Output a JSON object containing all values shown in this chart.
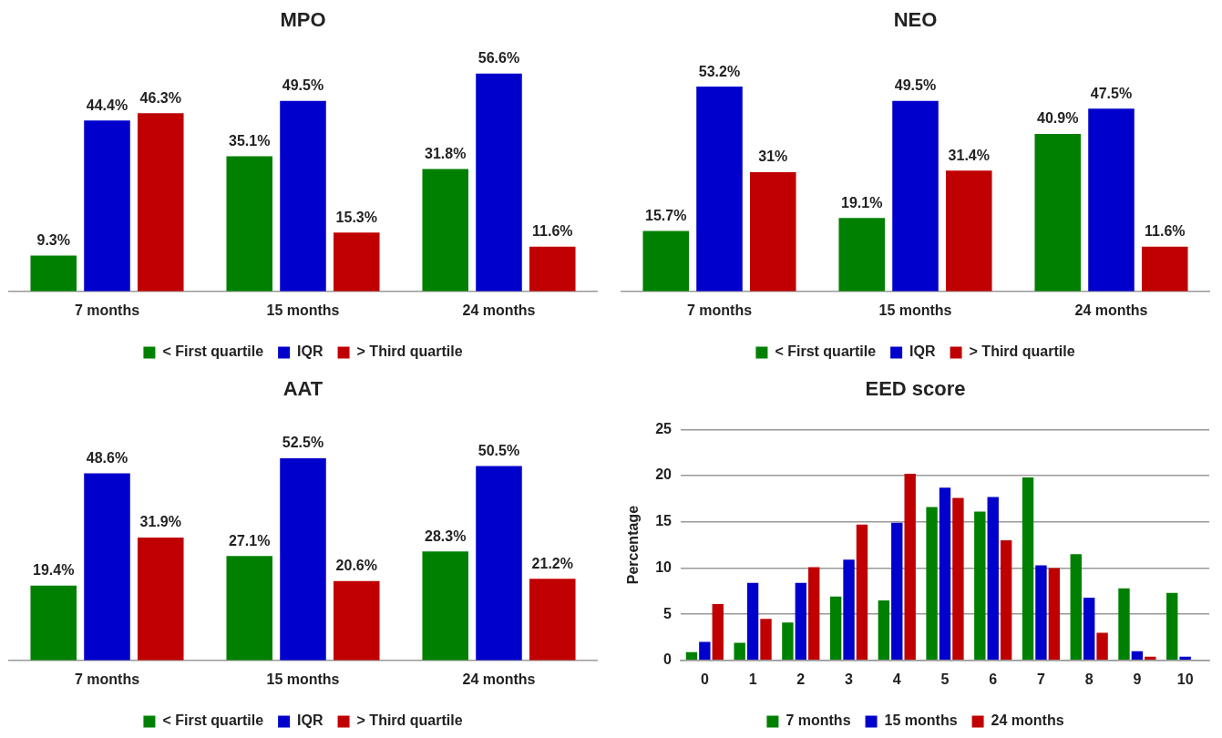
{
  "chart_data": [
    {
      "type": "bar",
      "title": "MPO",
      "categories": [
        "7 months",
        "15 months",
        "24 months"
      ],
      "tick_labels": "x",
      "legend": "bottom",
      "series": [
        {
          "name": "< First quartile",
          "color": "#008000",
          "values": [
            9.3,
            35.1,
            31.8
          ],
          "value_labels": [
            "9.3%",
            "35.1%",
            "31.8%"
          ]
        },
        {
          "name": "IQR",
          "color": "#0000cc",
          "values": [
            44.4,
            49.5,
            56.6
          ],
          "value_labels": [
            "44.4%",
            "49.5%",
            "56.6%"
          ]
        },
        {
          "name": "> Third quartile",
          "color": "#c00000",
          "values": [
            46.3,
            15.3,
            11.6
          ],
          "value_labels": [
            "46.3%",
            "15.3%",
            "11.6%"
          ]
        }
      ]
    },
    {
      "type": "bar",
      "title": "NEO",
      "categories": [
        "7 months",
        "15 months",
        "24 months"
      ],
      "tick_labels": "x",
      "legend": "bottom",
      "series": [
        {
          "name": "< First quartile",
          "color": "#008000",
          "values": [
            15.7,
            19.1,
            40.9
          ],
          "value_labels": [
            "15.7%",
            "19.1%",
            "40.9%"
          ]
        },
        {
          "name": "IQR",
          "color": "#0000cc",
          "values": [
            53.2,
            49.5,
            47.5
          ],
          "value_labels": [
            "53.2%",
            "49.5%",
            "47.5%"
          ]
        },
        {
          "name": "> Third quartile",
          "color": "#c00000",
          "values": [
            31,
            31.4,
            11.6
          ],
          "value_labels": [
            "31%",
            "31.4%",
            "11.6%"
          ]
        }
      ]
    },
    {
      "type": "bar",
      "title": "AAT",
      "categories": [
        "7 months",
        "15 months",
        "24 months"
      ],
      "tick_labels": "x",
      "legend": "bottom",
      "series": [
        {
          "name": "< First quartile",
          "color": "#008000",
          "values": [
            19.4,
            27.1,
            28.3
          ],
          "value_labels": [
            "19.4%",
            "27.1%",
            "28.3%"
          ]
        },
        {
          "name": "IQR",
          "color": "#0000cc",
          "values": [
            48.6,
            52.5,
            50.5
          ],
          "value_labels": [
            "48.6%",
            "52.5%",
            "50.5%"
          ]
        },
        {
          "name": "> Third quartile",
          "color": "#c00000",
          "values": [
            31.9,
            20.6,
            21.2
          ],
          "value_labels": [
            "31.9%",
            "20.6%",
            "21.2%"
          ]
        }
      ]
    },
    {
      "type": "bar",
      "title": "EED score",
      "ylabel": "Percentage",
      "categories": [
        "0",
        "1",
        "2",
        "3",
        "4",
        "5",
        "6",
        "7",
        "8",
        "9",
        "10"
      ],
      "ylim": [
        0,
        25
      ],
      "yticks": [
        0,
        5,
        10,
        15,
        20,
        25
      ],
      "grid": "y",
      "legend": "bottom",
      "series": [
        {
          "name": "7 months",
          "color": "#008000",
          "values": [
            0.9,
            1.9,
            4.1,
            6.9,
            6.5,
            16.6,
            16.1,
            19.8,
            11.5,
            7.8,
            7.3
          ]
        },
        {
          "name": "15 months",
          "color": "#0000cc",
          "values": [
            2.0,
            8.4,
            8.4,
            10.9,
            14.9,
            18.7,
            17.7,
            10.3,
            6.8,
            1.0,
            0.4
          ]
        },
        {
          "name": "24 months",
          "color": "#c00000",
          "values": [
            6.1,
            4.5,
            10.1,
            14.7,
            20.2,
            17.6,
            13.0,
            10.0,
            3.0,
            0.4,
            null
          ]
        }
      ]
    }
  ]
}
